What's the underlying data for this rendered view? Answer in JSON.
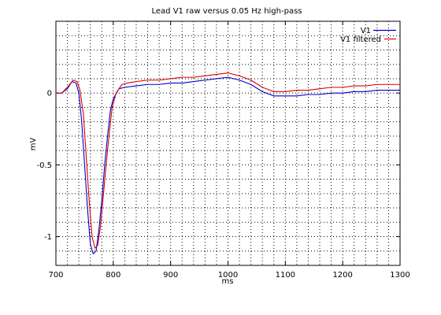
{
  "chart_data": {
    "type": "line",
    "title": "Lead V1 raw versus 0.05 Hz high-pass",
    "xlabel": "ms",
    "ylabel": "mV",
    "xlim": [
      700,
      1300
    ],
    "ylim": [
      -1.2,
      0.5
    ],
    "xticks": [
      700,
      800,
      900,
      1000,
      1100,
      1200,
      1300
    ],
    "yticks": [
      -1,
      -0.5,
      0
    ],
    "ytick_labels": [
      "-1",
      "-0.5",
      "0"
    ],
    "grid": true,
    "legend_position": "top-right",
    "series": [
      {
        "name": "V1",
        "color": "#0000cc",
        "x": [
          700,
          710,
          720,
          728,
          735,
          740,
          745,
          750,
          755,
          760,
          765,
          770,
          775,
          780,
          785,
          790,
          795,
          800,
          810,
          820,
          840,
          860,
          880,
          900,
          920,
          940,
          960,
          980,
          1000,
          1020,
          1040,
          1060,
          1080,
          1100,
          1120,
          1140,
          1160,
          1180,
          1200,
          1220,
          1240,
          1260,
          1280,
          1300
        ],
        "y": [
          0.0,
          0.0,
          0.03,
          0.08,
          0.07,
          0.0,
          -0.2,
          -0.5,
          -0.8,
          -1.05,
          -1.12,
          -1.1,
          -0.95,
          -0.75,
          -0.5,
          -0.3,
          -0.12,
          -0.04,
          0.03,
          0.04,
          0.05,
          0.06,
          0.06,
          0.07,
          0.07,
          0.08,
          0.09,
          0.1,
          0.11,
          0.09,
          0.06,
          0.01,
          -0.02,
          -0.02,
          -0.02,
          -0.01,
          -0.01,
          0.0,
          0.0,
          0.01,
          0.01,
          0.02,
          0.02,
          0.02
        ]
      },
      {
        "name": "V1 filtered",
        "color": "#dd0000",
        "x": [
          700,
          710,
          720,
          730,
          737,
          742,
          748,
          753,
          758,
          763,
          768,
          773,
          778,
          783,
          788,
          793,
          798,
          805,
          815,
          825,
          840,
          860,
          880,
          900,
          920,
          940,
          960,
          980,
          1000,
          1020,
          1040,
          1060,
          1080,
          1100,
          1120,
          1140,
          1160,
          1180,
          1200,
          1220,
          1240,
          1260,
          1280,
          1300
        ],
        "y": [
          0.0,
          0.0,
          0.04,
          0.09,
          0.08,
          0.02,
          -0.15,
          -0.45,
          -0.75,
          -1.0,
          -1.08,
          -1.06,
          -0.92,
          -0.7,
          -0.48,
          -0.28,
          -0.1,
          0.0,
          0.06,
          0.07,
          0.08,
          0.09,
          0.09,
          0.1,
          0.11,
          0.11,
          0.12,
          0.13,
          0.14,
          0.12,
          0.09,
          0.04,
          0.01,
          0.01,
          0.02,
          0.02,
          0.03,
          0.04,
          0.04,
          0.05,
          0.05,
          0.06,
          0.06,
          0.06
        ]
      }
    ]
  }
}
